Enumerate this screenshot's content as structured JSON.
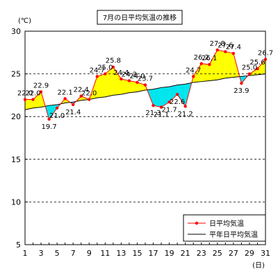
{
  "chart_data": {
    "type": "line",
    "title": "7月の日平均気温の推移",
    "ylabel": "(℃)",
    "xlabel": "(日)",
    "xlim": [
      1,
      31
    ],
    "ylim": [
      5,
      30
    ],
    "y_ticks": [
      5,
      10,
      15,
      20,
      25,
      30
    ],
    "x_ticks": [
      1,
      3,
      5,
      7,
      9,
      11,
      13,
      15,
      17,
      19,
      21,
      23,
      25,
      27,
      29,
      31
    ],
    "grid": "horizontal-dashed",
    "legend_position": "bottom-right",
    "x": [
      1,
      2,
      3,
      4,
      5,
      6,
      7,
      8,
      9,
      10,
      11,
      12,
      13,
      14,
      15,
      16,
      17,
      18,
      19,
      20,
      21,
      22,
      23,
      24,
      25,
      26,
      27,
      28,
      29,
      30,
      31
    ],
    "series": [
      {
        "name": "日平均気温",
        "color": "#ff0000",
        "values": [
          22.0,
          22.0,
          22.9,
          19.7,
          21.0,
          22.1,
          21.4,
          22.4,
          22.0,
          24.7,
          25.0,
          25.8,
          24.4,
          24.2,
          24.0,
          23.7,
          21.3,
          21.1,
          21.7,
          22.6,
          21.2,
          24.7,
          26.2,
          26.1,
          27.8,
          27.6,
          27.4,
          23.9,
          25.0,
          25.6,
          26.7
        ]
      },
      {
        "name": "平年日平均気温",
        "color": "#000000",
        "values": [
          20.8,
          21.0,
          21.1,
          21.3,
          21.4,
          21.6,
          21.7,
          21.9,
          22.0,
          22.2,
          22.3,
          22.5,
          22.6,
          22.8,
          22.9,
          23.1,
          23.2,
          23.4,
          23.5,
          23.7,
          23.8,
          24.0,
          24.1,
          24.2,
          24.3,
          24.5,
          24.6,
          24.7,
          24.8,
          24.9,
          25.0
        ]
      }
    ],
    "fill_above_color": "#ffff00",
    "fill_below_color": "#00e5ee",
    "data_labels": [
      "22.0",
      "22.0",
      "22.9",
      "19.7",
      "21.0",
      "22.1",
      "21.4",
      "22.4",
      "22.0",
      "24.7",
      "25.0",
      "25.8",
      "24.4",
      "24.2",
      "24.0",
      "23.7",
      "21.3",
      "21.1",
      "21.7",
      "22.6",
      "21.2",
      "24.7",
      "26.2",
      "26.1",
      "27.8",
      "27.6",
      "27.4",
      "23.9",
      "25.0",
      "25.6",
      "26.7"
    ]
  }
}
